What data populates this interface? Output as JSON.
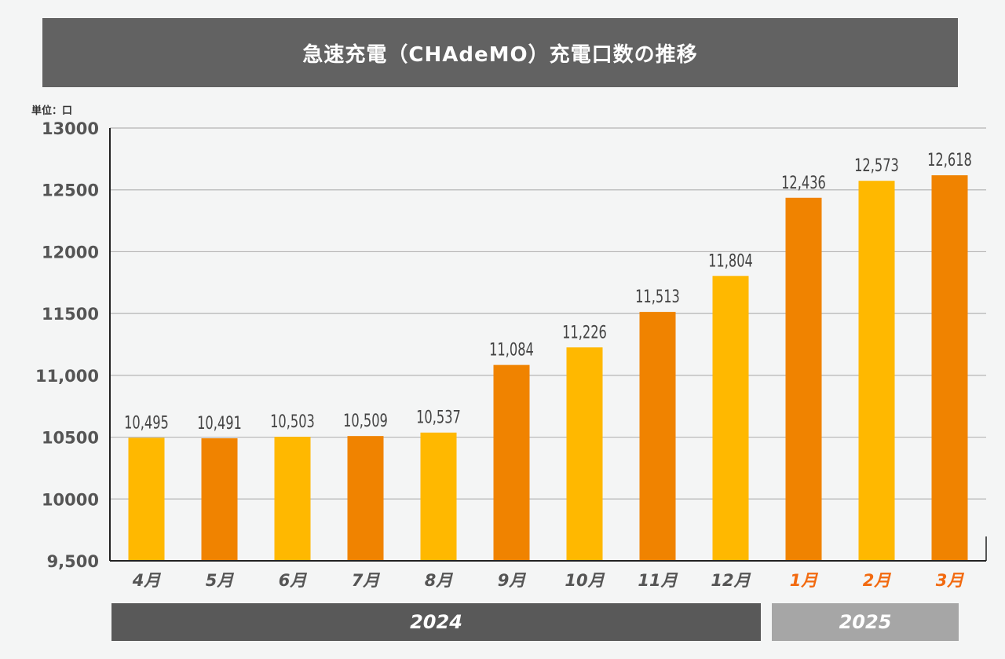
{
  "chart_data": {
    "type": "bar",
    "title": "急速充電（CHAdeMO）充電口数の推移",
    "unit": "単位：口",
    "categories": [
      "4月",
      "5月",
      "6月",
      "7月",
      "8月",
      "9月",
      "10月",
      "11月",
      "12月",
      "1月",
      "2月",
      "3月"
    ],
    "values": [
      10495,
      10491,
      10503,
      10509,
      10537,
      11084,
      11226,
      11513,
      11804,
      12436,
      12573,
      12618
    ],
    "value_labels": [
      "10,495",
      "10,491",
      "10,503",
      "10,509",
      "10,537",
      "11,084",
      "11,226",
      "11,513",
      "11,804",
      "12,436",
      "12,573",
      "12,618"
    ],
    "bar_colors": [
      "#ffb800",
      "#f08300",
      "#ffb800",
      "#f08300",
      "#ffb800",
      "#f08300",
      "#ffb800",
      "#f08300",
      "#ffb800",
      "#f08300",
      "#ffb800",
      "#f08300"
    ],
    "category_colors": [
      "#555555",
      "#555555",
      "#555555",
      "#555555",
      "#555555",
      "#555555",
      "#555555",
      "#555555",
      "#555555",
      "#f26a10",
      "#f26a10",
      "#f26a10"
    ],
    "ylim": [
      9500,
      13000
    ],
    "yticks": [
      9500,
      10000,
      10500,
      11000,
      11500,
      12000,
      12500,
      13000
    ],
    "ytick_labels": [
      "9,500",
      "10000",
      "10500",
      "11,000",
      "11500",
      "12000",
      "12500",
      "13000"
    ],
    "grid": true,
    "year_groups": [
      {
        "label": "2024",
        "months": [
          "4月",
          "5月",
          "6月",
          "7月",
          "8月",
          "9月",
          "10月",
          "11月",
          "12月"
        ]
      },
      {
        "label": "2025",
        "months": [
          "1月",
          "2月",
          "3月"
        ]
      }
    ]
  }
}
